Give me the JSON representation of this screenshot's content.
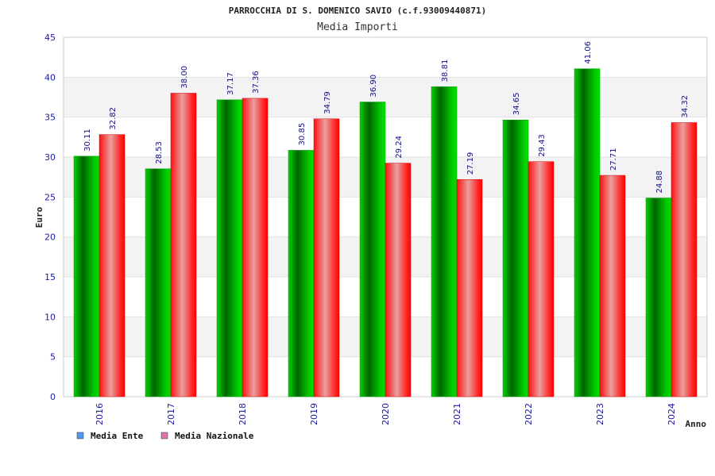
{
  "chart_data": {
    "type": "bar",
    "title": "PARROCCHIA DI S. DOMENICO SAVIO (c.f.93009440871)",
    "subtitle": "Media Importi",
    "xlabel": "Anno",
    "ylabel": "Euro",
    "ylim": [
      0,
      45
    ],
    "yticks": [
      0,
      5,
      10,
      15,
      20,
      25,
      30,
      35,
      40,
      45
    ],
    "grid": "horizontal-bands",
    "legend_position": "bottom-left",
    "categories": [
      "2016",
      "2017",
      "2018",
      "2019",
      "2020",
      "2021",
      "2022",
      "2023",
      "2024"
    ],
    "series": [
      {
        "name": "Media Ente",
        "color": "#00b000",
        "legend_color": "#5599ee",
        "values": [
          30.11,
          28.53,
          37.17,
          30.85,
          36.9,
          38.81,
          34.65,
          41.06,
          24.88
        ],
        "labels": [
          "30.11",
          "28.53",
          "37.17",
          "30.85",
          "36.90",
          "38.81",
          "34.65",
          "41.06",
          "24.88"
        ]
      },
      {
        "name": "Media Nazionale",
        "color": "#ff2020",
        "legend_color": "#dd77aa",
        "values": [
          32.82,
          38.0,
          37.36,
          34.79,
          29.24,
          27.19,
          29.43,
          27.71,
          34.32
        ],
        "labels": [
          "32.82",
          "38.00",
          "37.36",
          "34.79",
          "29.24",
          "27.19",
          "29.43",
          "27.71",
          "34.32"
        ]
      }
    ]
  }
}
